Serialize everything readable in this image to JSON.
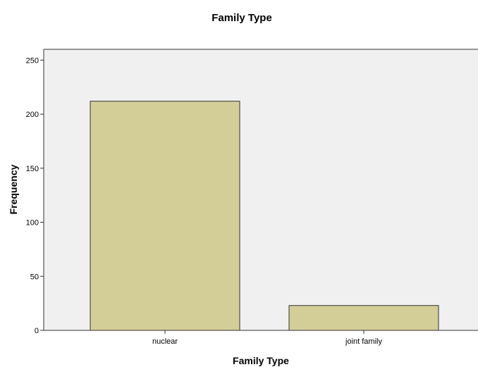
{
  "chart_data": {
    "type": "bar",
    "title": "Family Type",
    "xlabel": "Family Type",
    "ylabel": "Frequency",
    "categories": [
      "nuclear",
      "joint family"
    ],
    "values": [
      212,
      23
    ],
    "ylim": [
      0,
      260
    ],
    "yticks": [
      "0",
      "50",
      "100",
      "150",
      "200",
      "250"
    ],
    "grid": false,
    "legend": "none",
    "colors": {
      "plot_background": "#f0f0f0",
      "bar_fill": "#d3ce98",
      "bar_stroke": "#333333",
      "axis": "#333333"
    }
  }
}
